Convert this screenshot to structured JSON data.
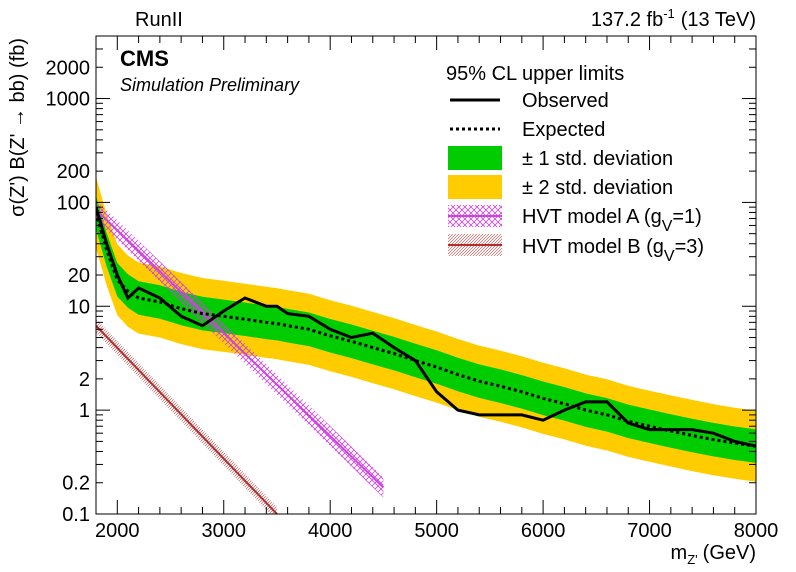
{
  "chart_data": {
    "type": "line",
    "header_left": "RunII",
    "header_right": {
      "lumi": "137.2 fb",
      "lumi_exp": "-1",
      "energy": "(13 TeV)"
    },
    "experiment": "CMS",
    "subtitle": "Simulation Preliminary",
    "ylabel": "σ(Z') B(Z' → bb) (fb)",
    "xlabel": "m",
    "xlabel_sub": "Z'",
    "xlabel_unit": "(GeV)",
    "legend_header": "95% CL upper limits",
    "legend_position": "top-right",
    "xlim": [
      1800,
      8000
    ],
    "ylim": [
      0.1,
      4000
    ],
    "y_scale": "log",
    "x_ticks": [
      2000,
      3000,
      4000,
      5000,
      6000,
      7000,
      8000
    ],
    "y_ticks": [
      {
        "value": 0.1,
        "label": "0.1"
      },
      {
        "value": 0.2,
        "label": "0.2"
      },
      {
        "value": 1,
        "label": "1"
      },
      {
        "value": 2,
        "label": "2"
      },
      {
        "value": 10,
        "label": "10"
      },
      {
        "value": 20,
        "label": "20"
      },
      {
        "value": 100,
        "label": "100"
      },
      {
        "value": 200,
        "label": "200"
      },
      {
        "value": 1000,
        "label": "1000"
      },
      {
        "value": 2000,
        "label": "2000"
      }
    ],
    "x": [
      1800,
      1900,
      2000,
      2100,
      2200,
      2400,
      2600,
      2800,
      3000,
      3200,
      3400,
      3500,
      3600,
      3800,
      4000,
      4200,
      4400,
      4600,
      4800,
      5000,
      5200,
      5400,
      5600,
      5800,
      6000,
      6200,
      6400,
      6600,
      6800,
      7000,
      7200,
      7400,
      7600,
      7800,
      8000
    ],
    "series": [
      {
        "name": "Observed",
        "style": "solid",
        "color": "#000000",
        "values": [
          90,
          40,
          20,
          12,
          15,
          12,
          8,
          6.5,
          9,
          12,
          10,
          10,
          8.5,
          8,
          6,
          5,
          5.5,
          4,
          3,
          1.5,
          1.0,
          0.9,
          0.9,
          0.9,
          0.8,
          1.0,
          1.2,
          1.2,
          0.75,
          0.65,
          0.65,
          0.65,
          0.6,
          0.5,
          0.45
        ]
      },
      {
        "name": "Expected",
        "style": "dotted",
        "color": "#000000",
        "values": [
          80,
          35,
          18,
          14,
          12,
          11,
          9.5,
          8.5,
          8,
          7.5,
          7,
          6.8,
          6.5,
          6,
          5.2,
          4.6,
          4.0,
          3.5,
          3.0,
          2.6,
          2.2,
          1.9,
          1.7,
          1.5,
          1.3,
          1.15,
          1.0,
          0.9,
          0.78,
          0.7,
          0.63,
          0.57,
          0.52,
          0.48,
          0.45
        ]
      },
      {
        "name": "HVT model A (g_V=1)",
        "style": "solid",
        "color": "#cc44dd",
        "x": [
          1800,
          4500
        ],
        "values": [
          85,
          0.18
        ]
      },
      {
        "name": "HVT model B (g_V=3)",
        "style": "solid",
        "color": "#b03030",
        "x": [
          1800,
          3500
        ],
        "values": [
          6.5,
          0.1
        ]
      }
    ],
    "bands": [
      {
        "name": "± 1 std. deviation",
        "color": "#00cc00",
        "factor": 1.45
      },
      {
        "name": "± 2 std. deviation",
        "color": "#ffcc00",
        "factor": 2.2
      }
    ],
    "legend": [
      {
        "label": "Observed",
        "kind": "solid-line"
      },
      {
        "label": "Expected",
        "kind": "dotted-line"
      },
      {
        "label": "± 1 std. deviation",
        "kind": "green-box"
      },
      {
        "label": "± 2 std. deviation",
        "kind": "yellow-box"
      },
      {
        "label": "HVT model A (g",
        "sub": "V",
        "tail": "=1)",
        "kind": "magenta-hatched"
      },
      {
        "label": "HVT model B (g",
        "sub": "V",
        "tail": "=3)",
        "kind": "red-hatched"
      }
    ]
  }
}
